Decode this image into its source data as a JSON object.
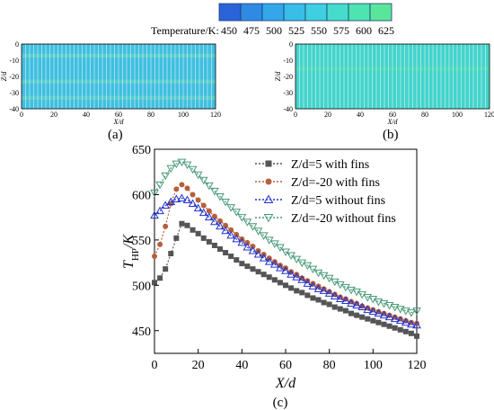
{
  "colorbar": {
    "title": "Temperature/K:",
    "ticks": [
      "450",
      "475",
      "500",
      "525",
      "550",
      "575",
      "600",
      "625"
    ],
    "colors": [
      "#2a64d8",
      "#2f8ae3",
      "#34a7ea",
      "#39bde9",
      "#3fcfe0",
      "#45dccc",
      "#4ee3b1",
      "#5ae69a"
    ]
  },
  "maps": [
    {
      "panel_label": "(a)",
      "xlabel": "X/d",
      "ylabel": "Z/d",
      "xticks": [
        "0",
        "20",
        "40",
        "60",
        "80",
        "100",
        "120"
      ],
      "yticks": [
        "0",
        "-10",
        "-20",
        "-30",
        "-40"
      ],
      "base_color": "#3fbfe0",
      "band_color": "#6ad7c0"
    },
    {
      "panel_label": "(b)",
      "xlabel": "X/d",
      "ylabel": "Z/d",
      "xticks": [
        "0",
        "20",
        "40",
        "60",
        "80",
        "100",
        "120"
      ],
      "yticks": [
        "0",
        "-10",
        "-20",
        "-30",
        "-40"
      ],
      "base_color": "#43d4cb",
      "band_color": "#56e0b0"
    }
  ],
  "chart_data": {
    "type": "line",
    "panel_label": "(c)",
    "title": "",
    "xlabel": "X/d",
    "ylabel": "T_HP/K",
    "ylabel_main": "T",
    "ylabel_sub": "HP",
    "ylabel_tail": "/K",
    "xlim": [
      0,
      120
    ],
    "ylim": [
      425,
      650
    ],
    "xticks": [
      0,
      20,
      40,
      60,
      80,
      100,
      120
    ],
    "yticks": [
      450,
      500,
      550,
      600,
      650
    ],
    "grid": false,
    "legend_position": "top-right",
    "x": [
      0,
      2.5,
      5,
      7.5,
      10,
      12.5,
      15,
      17.5,
      20,
      22.5,
      25,
      27.5,
      30,
      32.5,
      35,
      37.5,
      40,
      42.5,
      45,
      47.5,
      50,
      52.5,
      55,
      57.5,
      60,
      62.5,
      65,
      67.5,
      70,
      72.5,
      75,
      77.5,
      80,
      82.5,
      85,
      87.5,
      90,
      92.5,
      95,
      97.5,
      100,
      102.5,
      105,
      107.5,
      110,
      112.5,
      115,
      117.5,
      120
    ],
    "series": [
      {
        "name": "Z/d=5 with fins",
        "color": "#555555",
        "marker": "square",
        "values": [
          503,
          508,
          518,
          535,
          552,
          568,
          566,
          561,
          557,
          552,
          548,
          544,
          540,
          536,
          532,
          528,
          524,
          521,
          518,
          515,
          512,
          509,
          506,
          503,
          500,
          497,
          494,
          492,
          489,
          486,
          484,
          481,
          479,
          476,
          474,
          472,
          469,
          467,
          465,
          463,
          461,
          459,
          457,
          455,
          453,
          451,
          449,
          447,
          444
        ]
      },
      {
        "name": "Z/d=-20 with fins",
        "color": "#b5603c",
        "marker": "circle",
        "values": [
          532,
          545,
          565,
          590,
          606,
          611,
          607,
          600,
          594,
          588,
          582,
          576,
          571,
          566,
          561,
          556,
          551,
          547,
          543,
          538,
          534,
          530,
          526,
          522,
          519,
          515,
          512,
          508,
          505,
          502,
          499,
          496,
          493,
          490,
          487,
          485,
          482,
          480,
          477,
          475,
          473,
          471,
          469,
          467,
          465,
          463,
          461,
          459,
          458
        ]
      },
      {
        "name": "Z/d=5 without fins",
        "color": "#2233cc",
        "marker": "triangle",
        "values": [
          577,
          582,
          588,
          592,
          595,
          596,
          594,
          590,
          585,
          580,
          575,
          570,
          565,
          560,
          555,
          551,
          547,
          542,
          538,
          534,
          530,
          526,
          523,
          519,
          516,
          512,
          509,
          506,
          502,
          499,
          496,
          494,
          491,
          488,
          485,
          483,
          480,
          478,
          476,
          473,
          471,
          469,
          467,
          465,
          463,
          461,
          459,
          457,
          456
        ]
      },
      {
        "name": "Z/d=-20 without fins",
        "color": "#4a9a78",
        "marker": "triangle-down",
        "values": [
          602,
          611,
          621,
          629,
          634,
          636,
          633,
          628,
          622,
          616,
          610,
          604,
          598,
          592,
          586,
          581,
          575,
          570,
          565,
          560,
          555,
          550,
          546,
          542,
          537,
          533,
          529,
          525,
          522,
          518,
          514,
          511,
          508,
          504,
          501,
          498,
          495,
          493,
          490,
          487,
          485,
          482,
          480,
          478,
          476,
          474,
          472,
          470,
          472
        ]
      }
    ]
  }
}
